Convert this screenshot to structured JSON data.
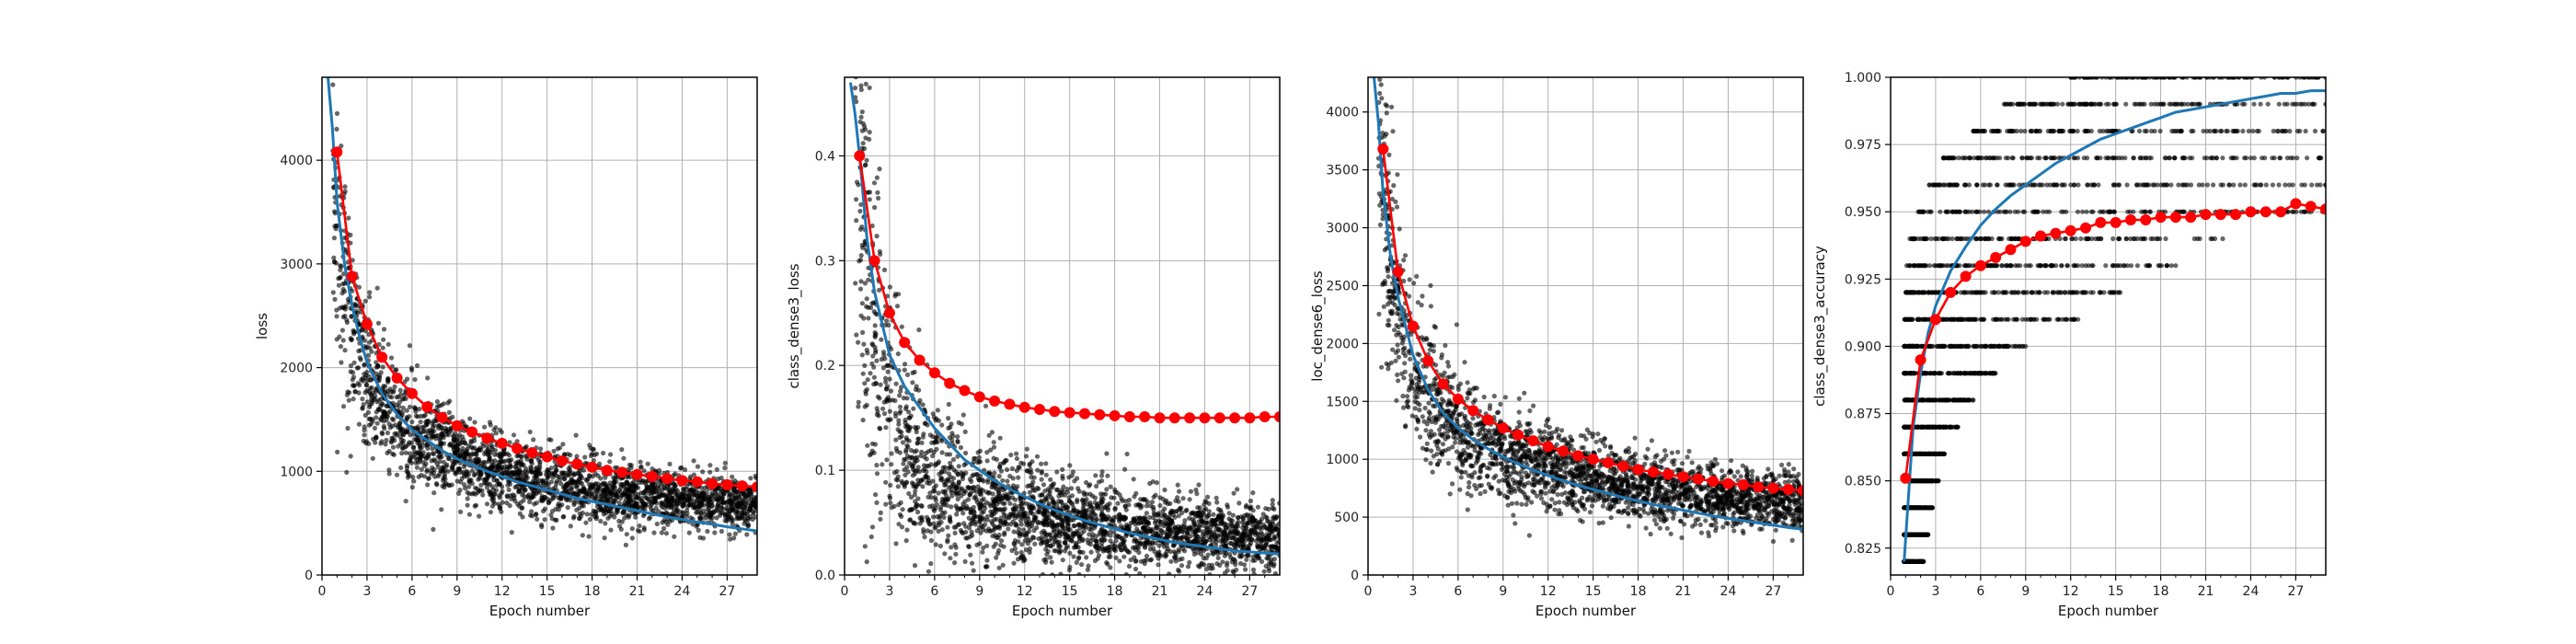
{
  "chart_data": [
    {
      "type": "scatter",
      "xlabel": "Epoch number",
      "ylabel": "loss",
      "xlim": [
        0,
        29
      ],
      "ylim": [
        0,
        4800
      ],
      "xticks": [
        0,
        3,
        6,
        9,
        12,
        15,
        18,
        21,
        24,
        27
      ],
      "yticks": [
        0,
        1000,
        2000,
        3000,
        4000
      ],
      "ytick_labels": [
        "0",
        "1000",
        "2000",
        "3000",
        "4000"
      ],
      "grid": true,
      "series": [
        {
          "style": "scatter",
          "color": "#000000",
          "model": {
            "kind": "loss",
            "a": 3300,
            "b": 240,
            "c": 0.6,
            "floor": 0
          },
          "spread": 0.19,
          "count": 2600
        },
        {
          "style": "line",
          "color": "#1f77b4",
          "x": [
            0.4,
            0.7,
            1,
            1.5,
            2,
            2.5,
            3,
            4,
            5,
            6,
            7,
            8,
            9,
            10,
            11,
            12,
            13,
            14,
            15,
            16,
            17,
            18,
            19,
            20,
            21,
            22,
            23,
            24,
            25,
            26,
            27,
            28,
            29
          ],
          "y": [
            4800,
            4300,
            3600,
            3000,
            2600,
            2300,
            2050,
            1750,
            1550,
            1400,
            1300,
            1200,
            1120,
            1060,
            1000,
            950,
            900,
            860,
            820,
            780,
            740,
            710,
            680,
            650,
            620,
            590,
            560,
            535,
            510,
            490,
            465,
            445,
            425
          ]
        },
        {
          "style": "line-markers",
          "color": "#ff0000",
          "x": [
            1,
            2,
            3,
            4,
            5,
            6,
            7,
            8,
            9,
            10,
            11,
            12,
            13,
            14,
            15,
            16,
            17,
            18,
            19,
            20,
            21,
            22,
            23,
            24,
            25,
            26,
            27,
            28,
            29
          ],
          "y": [
            4080,
            2880,
            2420,
            2100,
            1900,
            1750,
            1620,
            1520,
            1440,
            1380,
            1320,
            1270,
            1220,
            1180,
            1140,
            1100,
            1070,
            1040,
            1010,
            990,
            970,
            950,
            930,
            910,
            900,
            880,
            870,
            860,
            850
          ]
        }
      ]
    },
    {
      "type": "scatter",
      "xlabel": "Epoch number",
      "ylabel": "class_dense3_loss",
      "xlim": [
        0,
        29
      ],
      "ylim": [
        0,
        0.475
      ],
      "xticks": [
        0,
        3,
        6,
        9,
        12,
        15,
        18,
        21,
        24,
        27
      ],
      "yticks": [
        0,
        0.1,
        0.2,
        0.3,
        0.4
      ],
      "ytick_labels": [
        "0.0",
        "0.1",
        "0.2",
        "0.3",
        "0.4"
      ],
      "grid": true,
      "series": [
        {
          "style": "scatter",
          "color": "#000000",
          "model": {
            "kind": "loss",
            "a": 0.4,
            "b": 0.02,
            "c": 0.95,
            "floor": 0
          },
          "spread": 0.42,
          "count": 2600
        },
        {
          "style": "line",
          "color": "#1f77b4",
          "x": [
            0.4,
            0.7,
            1,
            1.5,
            2,
            2.5,
            3,
            4,
            5,
            6,
            7,
            8,
            9,
            10,
            11,
            12,
            13,
            14,
            15,
            16,
            17,
            18,
            19,
            20,
            21,
            22,
            23,
            24,
            25,
            26,
            27,
            28,
            29
          ],
          "y": [
            0.47,
            0.44,
            0.4,
            0.32,
            0.27,
            0.24,
            0.21,
            0.18,
            0.16,
            0.14,
            0.125,
            0.11,
            0.1,
            0.09,
            0.082,
            0.075,
            0.068,
            0.062,
            0.057,
            0.052,
            0.048,
            0.044,
            0.04,
            0.037,
            0.034,
            0.031,
            0.029,
            0.027,
            0.025,
            0.023,
            0.022,
            0.021,
            0.02
          ]
        },
        {
          "style": "line-markers",
          "color": "#ff0000",
          "x": [
            1,
            2,
            3,
            4,
            5,
            6,
            7,
            8,
            9,
            10,
            11,
            12,
            13,
            14,
            15,
            16,
            17,
            18,
            19,
            20,
            21,
            22,
            23,
            24,
            25,
            26,
            27,
            28,
            29
          ],
          "y": [
            0.4,
            0.3,
            0.25,
            0.222,
            0.205,
            0.193,
            0.183,
            0.176,
            0.17,
            0.166,
            0.163,
            0.16,
            0.158,
            0.156,
            0.155,
            0.154,
            0.153,
            0.152,
            0.151,
            0.151,
            0.15,
            0.15,
            0.15,
            0.15,
            0.15,
            0.15,
            0.15,
            0.151,
            0.151
          ]
        }
      ]
    },
    {
      "type": "scatter",
      "xlabel": "Epoch number",
      "ylabel": "loc_dense6_loss",
      "xlim": [
        0,
        29
      ],
      "ylim": [
        0,
        4300
      ],
      "xticks": [
        0,
        3,
        6,
        9,
        12,
        15,
        18,
        21,
        24,
        27
      ],
      "yticks": [
        0,
        500,
        1000,
        1500,
        2000,
        2500,
        3000,
        3500,
        4000
      ],
      "ytick_labels": [
        "0",
        "500",
        "1000",
        "1500",
        "2000",
        "2500",
        "3000",
        "3500",
        "4000"
      ],
      "grid": true,
      "series": [
        {
          "style": "scatter",
          "color": "#000000",
          "model": {
            "kind": "loss",
            "a": 3100,
            "b": 220,
            "c": 0.6,
            "floor": 0
          },
          "spread": 0.19,
          "count": 2600
        },
        {
          "style": "line",
          "color": "#1f77b4",
          "x": [
            0.4,
            0.7,
            1,
            1.5,
            2,
            2.5,
            3,
            4,
            5,
            6,
            7,
            8,
            9,
            10,
            11,
            12,
            13,
            14,
            15,
            16,
            17,
            18,
            19,
            20,
            21,
            22,
            23,
            24,
            25,
            26,
            27,
            28,
            29
          ],
          "y": [
            4300,
            3900,
            3300,
            2750,
            2400,
            2150,
            1900,
            1600,
            1400,
            1270,
            1170,
            1090,
            1020,
            960,
            905,
            860,
            815,
            775,
            740,
            705,
            670,
            640,
            610,
            585,
            560,
            535,
            510,
            490,
            470,
            450,
            430,
            410,
            395
          ]
        },
        {
          "style": "line-markers",
          "color": "#ff0000",
          "x": [
            1,
            2,
            3,
            4,
            5,
            6,
            7,
            8,
            9,
            10,
            11,
            12,
            13,
            14,
            15,
            16,
            17,
            18,
            19,
            20,
            21,
            22,
            23,
            24,
            25,
            26,
            27,
            28,
            29
          ],
          "y": [
            3680,
            2620,
            2150,
            1850,
            1650,
            1520,
            1420,
            1340,
            1270,
            1210,
            1160,
            1110,
            1070,
            1030,
            1000,
            970,
            940,
            910,
            890,
            870,
            850,
            830,
            810,
            790,
            780,
            760,
            750,
            740,
            730
          ]
        }
      ]
    },
    {
      "type": "scatter",
      "xlabel": "Epoch number",
      "ylabel": "class_dense3_accuracy",
      "xlim": [
        0,
        29
      ],
      "ylim": [
        0.815,
        1.0
      ],
      "xticks": [
        0,
        3,
        6,
        9,
        12,
        15,
        18,
        21,
        24,
        27
      ],
      "yticks": [
        0.825,
        0.85,
        0.875,
        0.9,
        0.925,
        0.95,
        0.975,
        1.0
      ],
      "ytick_labels": [
        "0.825",
        "0.850",
        "0.875",
        "0.900",
        "0.925",
        "0.950",
        "0.975",
        "1.000"
      ],
      "grid": true,
      "series": [
        {
          "style": "scatter-levels",
          "color": "#000000",
          "levels": [
            0.82,
            0.83,
            0.84,
            0.85,
            0.86,
            0.87,
            0.88,
            0.89,
            0.9,
            0.91,
            0.92,
            0.93,
            0.94,
            0.95,
            0.96,
            0.97,
            0.98,
            0.99,
            1.0
          ],
          "level_ranges": [
            [
              0.9,
              2.2
            ],
            [
              0.9,
              2.5
            ],
            [
              0.9,
              2.8
            ],
            [
              0.9,
              3.2
            ],
            [
              0.9,
              3.6
            ],
            [
              0.9,
              4.5
            ],
            [
              0.9,
              5.5
            ],
            [
              0.9,
              7.0
            ],
            [
              0.9,
              9.0
            ],
            [
              0.9,
              12.5
            ],
            [
              1.0,
              15.5
            ],
            [
              1.0,
              19.5
            ],
            [
              1.2,
              22.5
            ],
            [
              1.8,
              29
            ],
            [
              2.5,
              29
            ],
            [
              3.5,
              29
            ],
            [
              5.5,
              29
            ],
            [
              7.5,
              29
            ],
            [
              12.0,
              29
            ]
          ],
          "count": 2600
        },
        {
          "style": "line",
          "color": "#1f77b4",
          "x": [
            0.9,
            1.2,
            1.5,
            2,
            2.5,
            3,
            4,
            5,
            6,
            7,
            8,
            9,
            10,
            11,
            12,
            13,
            14,
            15,
            16,
            17,
            18,
            19,
            20,
            21,
            22,
            23,
            24,
            25,
            26,
            27,
            28,
            29
          ],
          "y": [
            0.82,
            0.845,
            0.87,
            0.89,
            0.905,
            0.915,
            0.928,
            0.937,
            0.945,
            0.951,
            0.956,
            0.96,
            0.964,
            0.968,
            0.971,
            0.974,
            0.977,
            0.979,
            0.981,
            0.983,
            0.985,
            0.987,
            0.988,
            0.989,
            0.99,
            0.991,
            0.992,
            0.993,
            0.994,
            0.994,
            0.995,
            0.995
          ]
        },
        {
          "style": "line-markers",
          "color": "#ff0000",
          "x": [
            1,
            2,
            3,
            4,
            5,
            6,
            7,
            8,
            9,
            10,
            11,
            12,
            13,
            14,
            15,
            16,
            17,
            18,
            19,
            20,
            21,
            22,
            23,
            24,
            25,
            26,
            27,
            28,
            29
          ],
          "y": [
            0.851,
            0.895,
            0.91,
            0.92,
            0.926,
            0.93,
            0.933,
            0.936,
            0.939,
            0.941,
            0.942,
            0.943,
            0.944,
            0.946,
            0.946,
            0.947,
            0.947,
            0.948,
            0.948,
            0.948,
            0.949,
            0.949,
            0.949,
            0.95,
            0.95,
            0.95,
            0.953,
            0.952,
            0.951
          ]
        }
      ]
    }
  ]
}
